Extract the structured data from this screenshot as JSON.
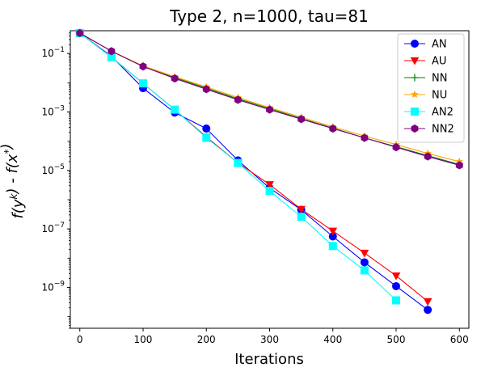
{
  "chart_data": {
    "type": "line",
    "title": "Type 2, n=1000, tau=81",
    "xlabel": "Iterations",
    "ylabel": "f(y^k) - f(x^*)",
    "yscale": "log",
    "xlim": [
      -15,
      615
    ],
    "ylim": [
      4e-11,
      0.6
    ],
    "x_ticks": [
      0,
      100,
      200,
      300,
      400,
      500,
      600
    ],
    "x_tick_labels": [
      "0",
      "100",
      "200",
      "300",
      "400",
      "500",
      "600"
    ],
    "y_ticks": [
      1e-09,
      1e-07,
      1e-05,
      0.001,
      0.1
    ],
    "y_tick_labels": [
      {
        "base": "10",
        "exp": "−9"
      },
      {
        "base": "10",
        "exp": "−7"
      },
      {
        "base": "10",
        "exp": "−5"
      },
      {
        "base": "10",
        "exp": "−3"
      },
      {
        "base": "10",
        "exp": "−1"
      }
    ],
    "grid": false,
    "legend_position": "top-right",
    "series": [
      {
        "name": "AN",
        "color": "#0000ff",
        "marker": "circle",
        "x": [
          0,
          50,
          100,
          150,
          200,
          250,
          300,
          350,
          400,
          450,
          500,
          550
        ],
        "y": [
          0.5,
          0.08,
          0.0065,
          0.00095,
          0.00027,
          2.2e-05,
          2.5e-06,
          4.5e-07,
          5.5e-08,
          7.2e-09,
          1.1e-09,
          1.7e-10
        ]
      },
      {
        "name": "AU",
        "color": "#ff0000",
        "marker": "triangle-down",
        "x": [
          0,
          50,
          100,
          150,
          200,
          250,
          300,
          350,
          400,
          450,
          500,
          550
        ],
        "y": [
          0.5,
          0.075,
          0.0095,
          0.0012,
          0.00014,
          1.8e-05,
          3.3e-06,
          4.7e-07,
          8.5e-08,
          1.5e-08,
          2.5e-09,
          3.3e-10
        ]
      },
      {
        "name": "NN",
        "color": "#008000",
        "marker": "plus",
        "x": [
          0,
          50,
          100,
          150,
          200,
          250,
          300,
          350,
          400,
          450,
          500,
          550,
          600
        ],
        "y": [
          0.5,
          0.12,
          0.036,
          0.015,
          0.0065,
          0.0028,
          0.0013,
          0.0006,
          0.00028,
          0.00013,
          6.5e-05,
          3.2e-05,
          1.6e-05
        ]
      },
      {
        "name": "NU",
        "color": "#ffa500",
        "marker": "star",
        "x": [
          0,
          50,
          100,
          150,
          200,
          250,
          300,
          350,
          400,
          450,
          500,
          550,
          600
        ],
        "y": [
          0.5,
          0.12,
          0.038,
          0.016,
          0.0072,
          0.0031,
          0.0014,
          0.00066,
          0.00031,
          0.00015,
          7.7e-05,
          3.8e-05,
          2e-05
        ]
      },
      {
        "name": "AN2",
        "color": "#00ffff",
        "marker": "square",
        "x": [
          0,
          50,
          100,
          150,
          200,
          250,
          300,
          350,
          400,
          450,
          500
        ],
        "y": [
          0.5,
          0.075,
          0.0095,
          0.0012,
          0.00013,
          1.8e-05,
          2e-06,
          2.6e-07,
          2.6e-08,
          3.8e-09,
          3.6e-10
        ]
      },
      {
        "name": "NN2",
        "color": "#800080",
        "marker": "hexagon",
        "x": [
          0,
          50,
          100,
          150,
          200,
          250,
          300,
          350,
          400,
          450,
          500,
          550,
          600
        ],
        "y": [
          0.5,
          0.12,
          0.036,
          0.014,
          0.006,
          0.0026,
          0.0012,
          0.00057,
          0.00027,
          0.00013,
          6.2e-05,
          3e-05,
          1.5e-05
        ]
      }
    ]
  }
}
